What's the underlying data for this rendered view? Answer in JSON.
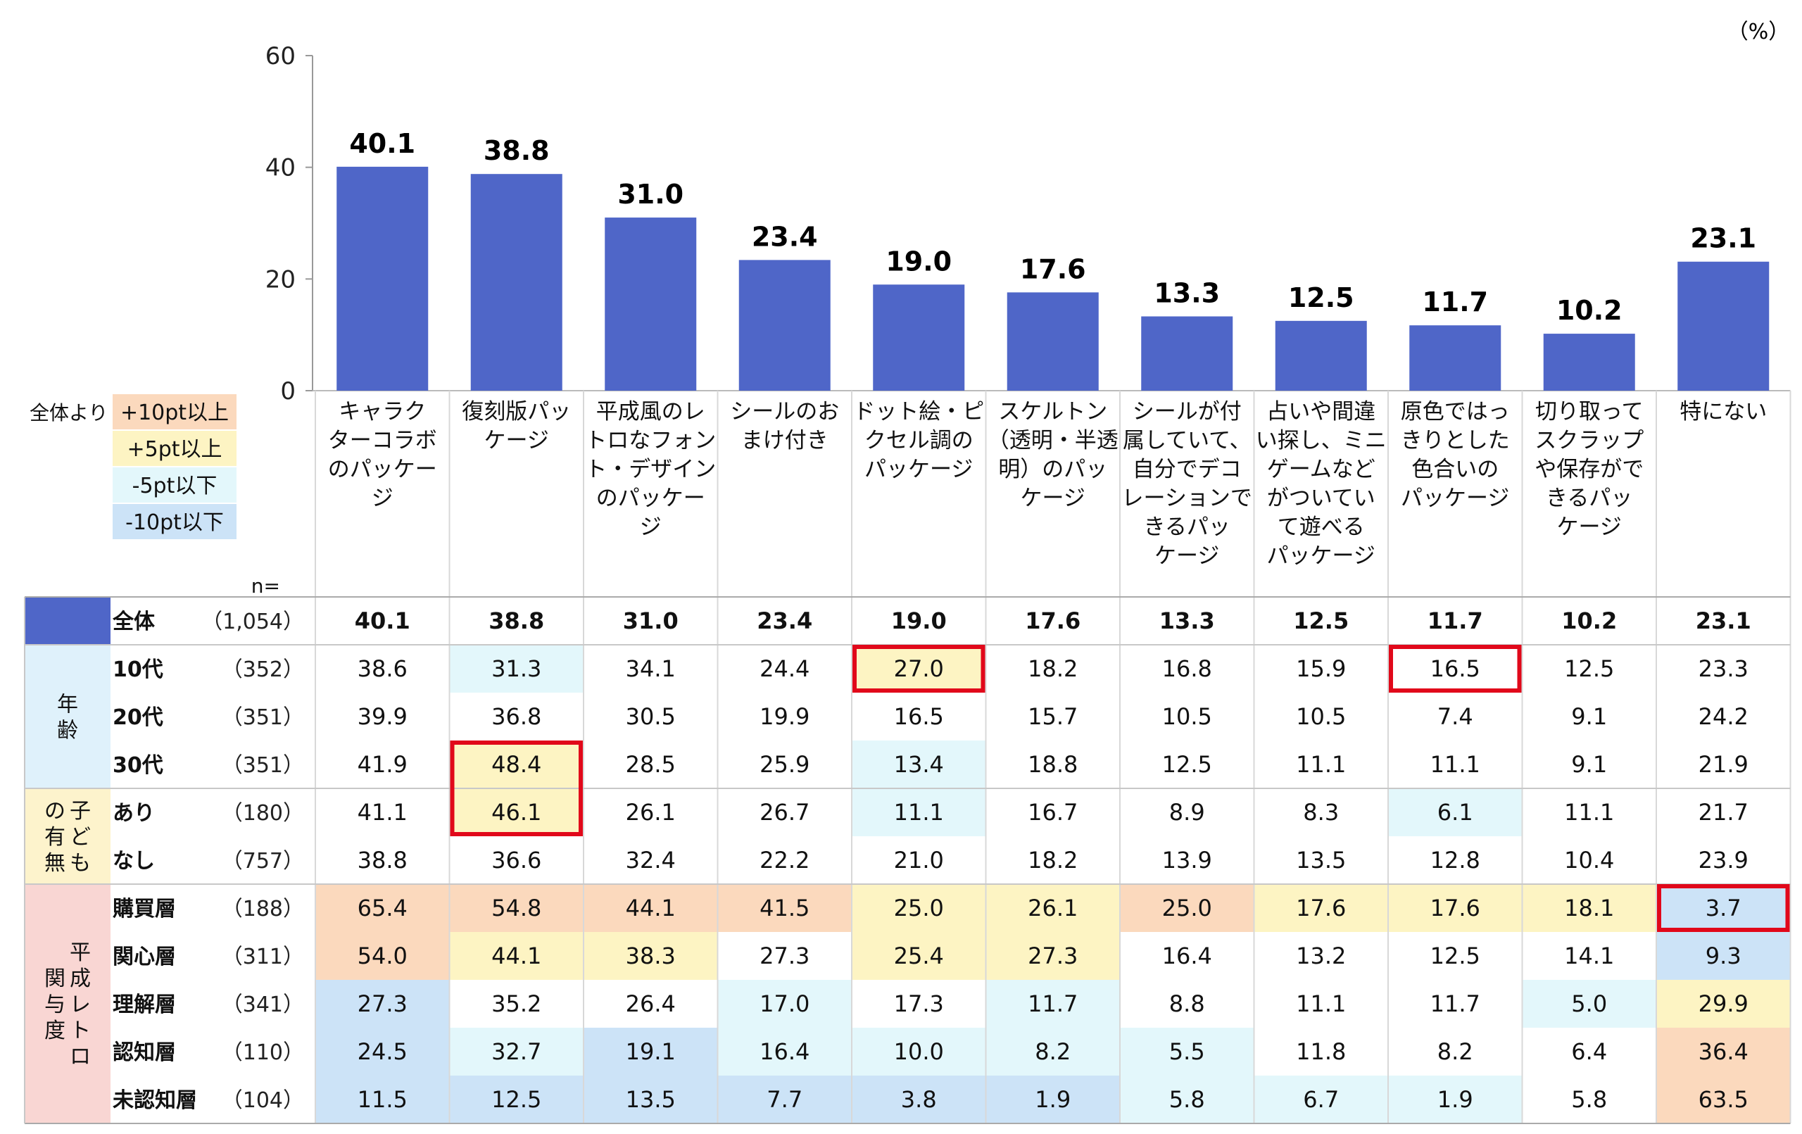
{
  "unit": "（%）",
  "y_ticks": [
    "0",
    "20",
    "40",
    "60"
  ],
  "colors": {
    "bar": "#4f66c8",
    "up10": "#fbd9bd",
    "up5": "#fdf4c3",
    "down5": "#e3f7fb",
    "down10": "#cce3f7",
    "age_group": "#dff1fb",
    "child_group": "#fdf3cc",
    "retro_group": "#f9d6d3",
    "highlight": "#e1081a",
    "grid": "#d8d8d8"
  },
  "chart_data": {
    "type": "bar",
    "title": "",
    "xlabel": "",
    "ylabel": "（%）",
    "ylim": [
      0,
      60
    ],
    "grid": false,
    "categories": [
      "キャラクターコラボのパッケージ",
      "復刻版パッケージ",
      "平成風のレトロなフォント・デザインのパッケージ",
      "シールのおまけ付き",
      "ドット絵・ピクセル調のパッケージ",
      "スケルトン（透明・半透明）のパッケージ",
      "シールが付属していて、自分でデコレーションできるパッケージ",
      "占いや間違い探し、ミニゲームなどがついていて遊べるパッケージ",
      "原色ではっきりとした色合いのパッケージ",
      "切り取ってスクラップや保存ができるパッケージ",
      "特にない"
    ],
    "category_lines": [
      [
        "キャラク",
        "ターコラボ",
        "のパッケー",
        "ジ"
      ],
      [
        "復刻版パッ",
        "ケージ"
      ],
      [
        "平成風のレ",
        "トロなフォン",
        "ト・デザイン",
        "のパッケー",
        "ジ"
      ],
      [
        "シールのお",
        "まけ付き"
      ],
      [
        "ドット絵・ピ",
        "クセル調の",
        "パッケージ"
      ],
      [
        "スケルトン",
        "（透明・半透",
        "明）のパッ",
        "ケージ"
      ],
      [
        "シールが付",
        "属していて、",
        "自分でデコ",
        "レーションで",
        "きるパッ",
        "ケージ"
      ],
      [
        "占いや間違",
        "い探し、ミニ",
        "ゲームなど",
        "がついてい",
        "て遊べる",
        "パッケージ"
      ],
      [
        "原色ではっ",
        "きりとした",
        "色合いの",
        "パッケージ"
      ],
      [
        "切り取って",
        "スクラップ",
        "や保存がで",
        "きるパッ",
        "ケージ"
      ],
      [
        "特にない"
      ]
    ],
    "values": [
      40.1,
      38.8,
      31.0,
      23.4,
      19.0,
      17.6,
      13.3,
      12.5,
      11.7,
      10.2,
      23.1
    ],
    "value_labels": [
      "40.1",
      "38.8",
      "31.0",
      "23.4",
      "19.0",
      "17.6",
      "13.3",
      "12.5",
      "11.7",
      "10.2",
      "23.1"
    ]
  },
  "legend": {
    "prefix": "全体より",
    "items": [
      {
        "label": "+10pt以上",
        "key": "up10"
      },
      {
        "label": "+5pt以上",
        "key": "up5"
      },
      {
        "label": "-5pt以下",
        "key": "down5"
      },
      {
        "label": "-10pt以下",
        "key": "down10"
      }
    ]
  },
  "n_header": "n=",
  "table": {
    "groups": [
      {
        "label_cols": [
          [
            "年",
            "齢"
          ]
        ],
        "key": "age_group"
      },
      {
        "label_cols": [
          [
            "子",
            "ど",
            "も"
          ],
          [
            "の",
            "有",
            "無"
          ]
        ],
        "key": "child_group"
      },
      {
        "label_cols": [
          [
            "平",
            "成",
            "レ",
            "ト",
            "ロ"
          ],
          [
            "関",
            "与",
            "度"
          ]
        ],
        "key": "retro_group"
      }
    ],
    "rows": [
      {
        "label": "全体",
        "n": "（1,054）",
        "cells": [
          "40.1",
          "38.8",
          "31.0",
          "23.4",
          "19.0",
          "17.6",
          "13.3",
          "12.5",
          "11.7",
          "10.2",
          "23.1"
        ],
        "shade": [
          "",
          "",
          "",
          "",
          "",
          "",
          "",
          "",
          "",
          "",
          ""
        ],
        "boxed": []
      },
      {
        "label": "10代",
        "n": "（352）",
        "cells": [
          "38.6",
          "31.3",
          "34.1",
          "24.4",
          "27.0",
          "18.2",
          "16.8",
          "15.9",
          "16.5",
          "12.5",
          "23.3"
        ],
        "shade": [
          "",
          "down5",
          "",
          "",
          "up5",
          "",
          "",
          "",
          "",
          "",
          ""
        ],
        "boxed": [
          4,
          8
        ]
      },
      {
        "label": "20代",
        "n": "（351）",
        "cells": [
          "39.9",
          "36.8",
          "30.5",
          "19.9",
          "16.5",
          "15.7",
          "10.5",
          "10.5",
          "7.4",
          "9.1",
          "24.2"
        ],
        "shade": [
          "",
          "",
          "",
          "",
          "",
          "",
          "",
          "",
          "",
          "",
          ""
        ],
        "boxed": []
      },
      {
        "label": "30代",
        "n": "（351）",
        "cells": [
          "41.9",
          "48.4",
          "28.5",
          "25.9",
          "13.4",
          "18.8",
          "12.5",
          "11.1",
          "11.1",
          "9.1",
          "21.9"
        ],
        "shade": [
          "",
          "up5",
          "",
          "",
          "down5",
          "",
          "",
          "",
          "",
          "",
          ""
        ],
        "boxed": [
          1
        ]
      },
      {
        "label": "あり",
        "n": "（180）",
        "cells": [
          "41.1",
          "46.1",
          "26.1",
          "26.7",
          "11.1",
          "16.7",
          "8.9",
          "8.3",
          "6.1",
          "11.1",
          "21.7"
        ],
        "shade": [
          "",
          "up5",
          "",
          "",
          "down5",
          "",
          "",
          "",
          "down5",
          "",
          ""
        ],
        "boxed": [
          1
        ]
      },
      {
        "label": "なし",
        "n": "（757）",
        "cells": [
          "38.8",
          "36.6",
          "32.4",
          "22.2",
          "21.0",
          "18.2",
          "13.9",
          "13.5",
          "12.8",
          "10.4",
          "23.9"
        ],
        "shade": [
          "",
          "",
          "",
          "",
          "",
          "",
          "",
          "",
          "",
          "",
          ""
        ],
        "boxed": []
      },
      {
        "label": "購買層",
        "n": "（188）",
        "cells": [
          "65.4",
          "54.8",
          "44.1",
          "41.5",
          "25.0",
          "26.1",
          "25.0",
          "17.6",
          "17.6",
          "18.1",
          "3.7"
        ],
        "shade": [
          "up10",
          "up10",
          "up10",
          "up10",
          "up5",
          "up5",
          "up10",
          "up5",
          "up5",
          "up5",
          "down10"
        ],
        "boxed": [
          10
        ]
      },
      {
        "label": "関心層",
        "n": "（311）",
        "cells": [
          "54.0",
          "44.1",
          "38.3",
          "27.3",
          "25.4",
          "27.3",
          "16.4",
          "13.2",
          "12.5",
          "14.1",
          "9.3"
        ],
        "shade": [
          "up10",
          "up5",
          "up5",
          "",
          "up5",
          "up5",
          "",
          "",
          "",
          "",
          "down10"
        ],
        "boxed": []
      },
      {
        "label": "理解層",
        "n": "（341）",
        "cells": [
          "27.3",
          "35.2",
          "26.4",
          "17.0",
          "17.3",
          "11.7",
          "8.8",
          "11.1",
          "11.7",
          "5.0",
          "29.9"
        ],
        "shade": [
          "down10",
          "",
          "",
          "down5",
          "",
          "down5",
          "",
          "",
          "",
          "down5",
          "up5"
        ],
        "boxed": []
      },
      {
        "label": "認知層",
        "n": "（110）",
        "cells": [
          "24.5",
          "32.7",
          "19.1",
          "16.4",
          "10.0",
          "8.2",
          "5.5",
          "11.8",
          "8.2",
          "6.4",
          "36.4"
        ],
        "shade": [
          "down10",
          "down5",
          "down10",
          "down5",
          "down5",
          "down5",
          "down5",
          "",
          "",
          "",
          "up10"
        ],
        "boxed": []
      },
      {
        "label": "未認知層",
        "n": "（104）",
        "cells": [
          "11.5",
          "12.5",
          "13.5",
          "7.7",
          "3.8",
          "1.9",
          "5.8",
          "6.7",
          "1.9",
          "5.8",
          "63.5"
        ],
        "shade": [
          "down10",
          "down10",
          "down10",
          "down10",
          "down10",
          "down10",
          "down5",
          "down5",
          "down5",
          "",
          "up10"
        ],
        "boxed": []
      }
    ]
  }
}
